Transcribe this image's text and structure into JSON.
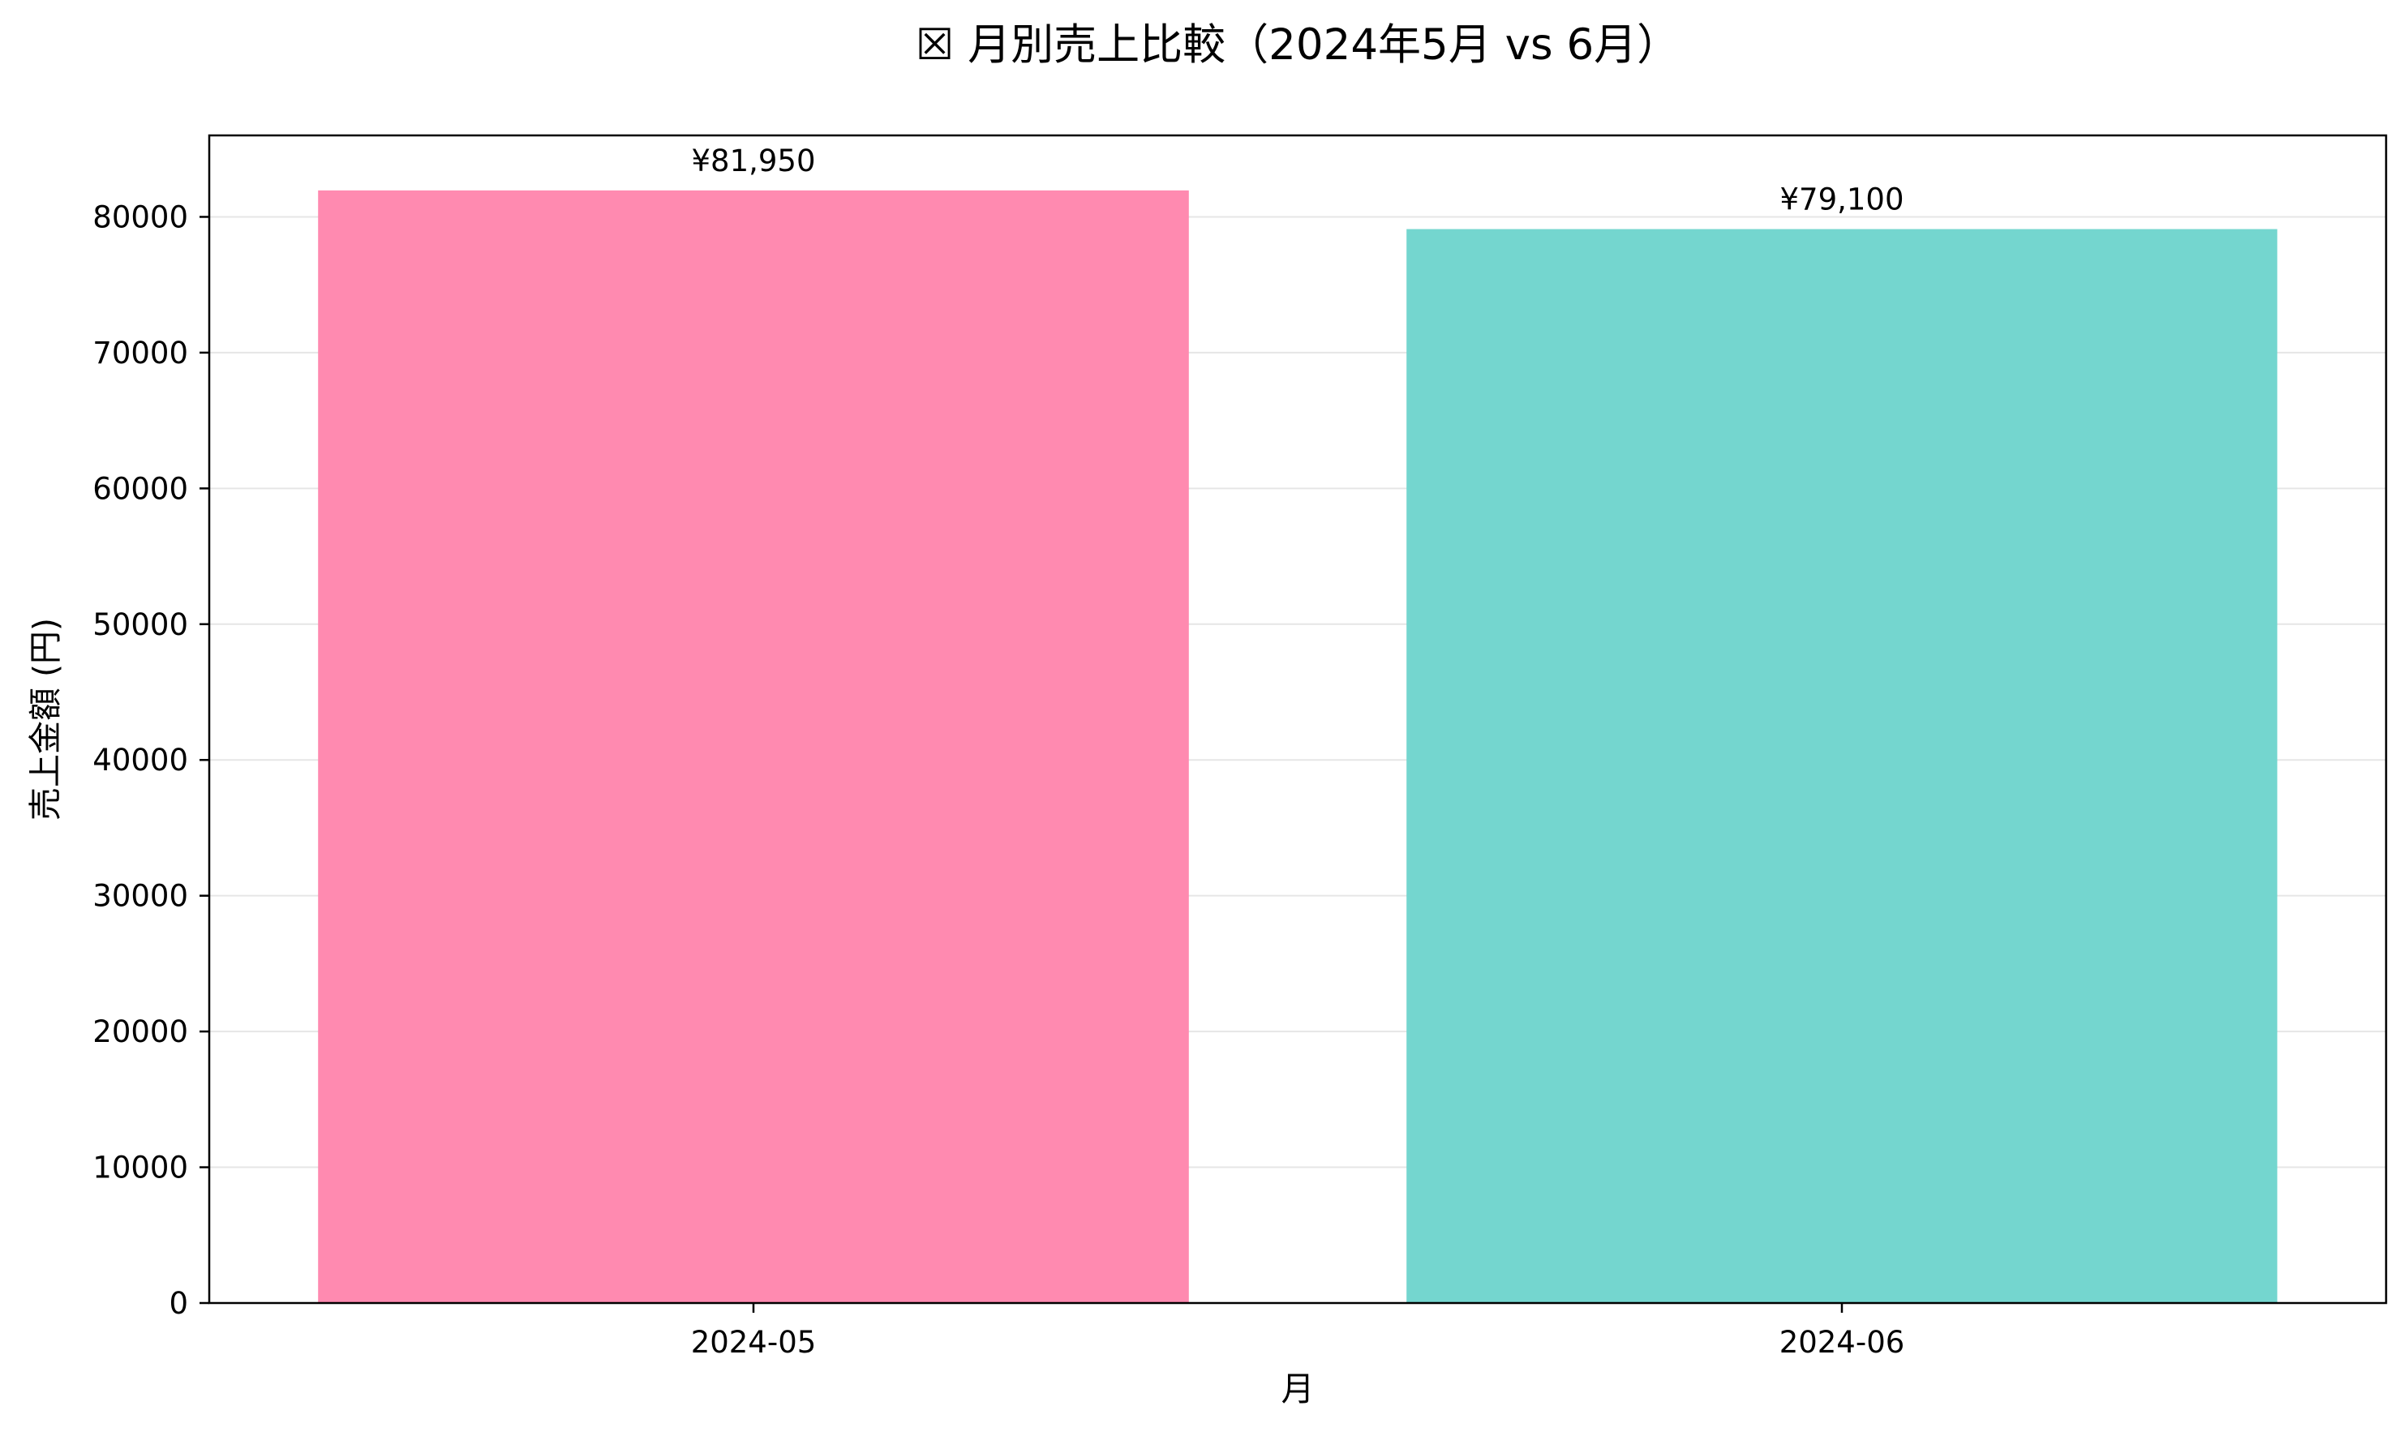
{
  "chart_data": {
    "type": "bar",
    "title": "☒ 月別売上比較（2024年5月 vs 6月）",
    "xlabel": "月",
    "ylabel": "売上金額 (円)",
    "categories": [
      "2024-05",
      "2024-06"
    ],
    "values": [
      81950,
      79100
    ],
    "value_labels": [
      "¥81,950",
      "¥79,100"
    ],
    "bar_colors": [
      "#ff8ab0",
      "#74d6cf"
    ],
    "ylim": [
      0,
      86000
    ],
    "yticks": [
      0,
      10000,
      20000,
      30000,
      40000,
      50000,
      60000,
      70000,
      80000
    ],
    "ytick_labels": [
      "0",
      "10000",
      "20000",
      "30000",
      "40000",
      "50000",
      "60000",
      "70000",
      "80000"
    ],
    "grid": "horizontal",
    "legend": "none"
  },
  "colors": {
    "background": "#ffffff",
    "axis": "#000000",
    "grid": "#e6e6e6"
  }
}
